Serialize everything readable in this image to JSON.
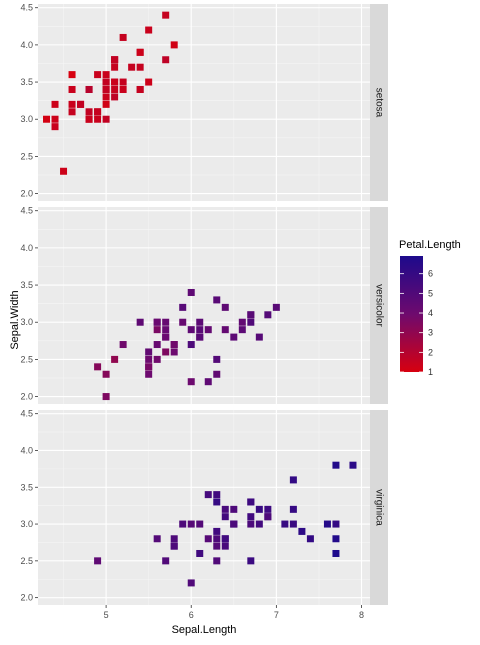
{
  "chart_data": {
    "type": "scatter",
    "xlabel": "Sepal.Length",
    "ylabel": "Sepal.Width",
    "xlim": [
      4.2,
      8.1
    ],
    "ylim": [
      1.9,
      4.55
    ],
    "x_ticks": [
      5,
      6,
      7,
      8
    ],
    "x_tick_labels": [
      "5",
      "6",
      "7",
      "8"
    ],
    "y_ticks": [
      2.0,
      2.5,
      3.0,
      3.5,
      4.0,
      4.5
    ],
    "y_tick_labels": [
      "2.0",
      "2.5",
      "3.0",
      "3.5",
      "4.0",
      "4.5"
    ],
    "grid": true,
    "facet_by": "Species",
    "legend": {
      "title": "Petal.Length",
      "placement": "right",
      "range": [
        1,
        6.9
      ],
      "ticks": [
        1,
        2,
        3,
        4,
        5,
        6
      ],
      "tick_labels": [
        "1",
        "2",
        "3",
        "4",
        "5",
        "6"
      ],
      "color_low": "#d7000f",
      "color_mid": "#6e0a6e",
      "color_high": "#1d0a8c"
    },
    "panels": [
      {
        "label": "setosa",
        "points": [
          [
            5.1,
            3.5,
            1.4
          ],
          [
            4.9,
            3.0,
            1.4
          ],
          [
            4.7,
            3.2,
            1.3
          ],
          [
            4.6,
            3.1,
            1.5
          ],
          [
            5.0,
            3.6,
            1.4
          ],
          [
            5.4,
            3.9,
            1.7
          ],
          [
            4.6,
            3.4,
            1.4
          ],
          [
            5.0,
            3.4,
            1.5
          ],
          [
            4.4,
            2.9,
            1.4
          ],
          [
            4.9,
            3.1,
            1.5
          ],
          [
            5.4,
            3.7,
            1.5
          ],
          [
            4.8,
            3.4,
            1.6
          ],
          [
            4.8,
            3.0,
            1.4
          ],
          [
            4.3,
            3.0,
            1.1
          ],
          [
            5.8,
            4.0,
            1.2
          ],
          [
            5.7,
            4.4,
            1.5
          ],
          [
            5.4,
            3.9,
            1.3
          ],
          [
            5.1,
            3.5,
            1.4
          ],
          [
            5.7,
            3.8,
            1.7
          ],
          [
            5.1,
            3.8,
            1.5
          ],
          [
            5.4,
            3.4,
            1.7
          ],
          [
            5.1,
            3.7,
            1.5
          ],
          [
            4.6,
            3.6,
            1.0
          ],
          [
            5.1,
            3.3,
            1.7
          ],
          [
            4.8,
            3.4,
            1.9
          ],
          [
            5.0,
            3.0,
            1.6
          ],
          [
            5.0,
            3.4,
            1.6
          ],
          [
            5.2,
            3.5,
            1.5
          ],
          [
            5.2,
            3.4,
            1.4
          ],
          [
            4.7,
            3.2,
            1.6
          ],
          [
            4.8,
            3.1,
            1.6
          ],
          [
            5.4,
            3.4,
            1.5
          ],
          [
            5.2,
            4.1,
            1.5
          ],
          [
            5.5,
            4.2,
            1.4
          ],
          [
            4.9,
            3.1,
            1.5
          ],
          [
            5.0,
            3.2,
            1.2
          ],
          [
            5.5,
            3.5,
            1.3
          ],
          [
            4.9,
            3.6,
            1.4
          ],
          [
            4.4,
            3.0,
            1.3
          ],
          [
            5.1,
            3.4,
            1.5
          ],
          [
            5.0,
            3.5,
            1.3
          ],
          [
            4.5,
            2.3,
            1.3
          ],
          [
            4.4,
            3.2,
            1.3
          ],
          [
            5.0,
            3.5,
            1.6
          ],
          [
            5.1,
            3.8,
            1.9
          ],
          [
            4.8,
            3.0,
            1.4
          ],
          [
            5.1,
            3.8,
            1.6
          ],
          [
            4.6,
            3.2,
            1.4
          ],
          [
            5.3,
            3.7,
            1.5
          ],
          [
            5.0,
            3.3,
            1.4
          ]
        ]
      },
      {
        "label": "versicolor",
        "points": [
          [
            7.0,
            3.2,
            4.7
          ],
          [
            6.4,
            3.2,
            4.5
          ],
          [
            6.9,
            3.1,
            4.9
          ],
          [
            5.5,
            2.3,
            4.0
          ],
          [
            6.5,
            2.8,
            4.6
          ],
          [
            5.7,
            2.8,
            4.5
          ],
          [
            6.3,
            3.3,
            4.7
          ],
          [
            4.9,
            2.4,
            3.3
          ],
          [
            6.6,
            2.9,
            4.6
          ],
          [
            5.2,
            2.7,
            3.9
          ],
          [
            5.0,
            2.0,
            3.5
          ],
          [
            5.9,
            3.0,
            4.2
          ],
          [
            6.0,
            2.2,
            4.0
          ],
          [
            6.1,
            2.9,
            4.7
          ],
          [
            5.6,
            2.9,
            3.6
          ],
          [
            6.7,
            3.1,
            4.4
          ],
          [
            5.6,
            3.0,
            4.5
          ],
          [
            5.8,
            2.7,
            4.1
          ],
          [
            6.2,
            2.2,
            4.5
          ],
          [
            5.6,
            2.5,
            3.9
          ],
          [
            5.9,
            3.2,
            4.8
          ],
          [
            6.1,
            2.8,
            4.0
          ],
          [
            6.3,
            2.5,
            4.9
          ],
          [
            6.1,
            2.8,
            4.7
          ],
          [
            6.4,
            2.9,
            4.3
          ],
          [
            6.6,
            3.0,
            4.4
          ],
          [
            6.8,
            2.8,
            4.8
          ],
          [
            6.7,
            3.0,
            5.0
          ],
          [
            6.0,
            2.9,
            4.5
          ],
          [
            5.7,
            2.6,
            3.5
          ],
          [
            5.5,
            2.4,
            3.8
          ],
          [
            5.5,
            2.4,
            3.7
          ],
          [
            5.8,
            2.7,
            3.9
          ],
          [
            6.0,
            2.7,
            5.1
          ],
          [
            5.4,
            3.0,
            4.5
          ],
          [
            6.0,
            3.4,
            4.5
          ],
          [
            6.7,
            3.1,
            4.7
          ],
          [
            6.3,
            2.3,
            4.4
          ],
          [
            5.6,
            3.0,
            4.1
          ],
          [
            5.5,
            2.5,
            4.0
          ],
          [
            5.5,
            2.6,
            4.4
          ],
          [
            6.1,
            3.0,
            4.6
          ],
          [
            5.8,
            2.6,
            4.0
          ],
          [
            5.0,
            2.3,
            3.3
          ],
          [
            5.6,
            2.7,
            4.2
          ],
          [
            5.7,
            3.0,
            4.2
          ],
          [
            5.7,
            2.9,
            4.2
          ],
          [
            6.2,
            2.9,
            4.3
          ],
          [
            5.1,
            2.5,
            3.0
          ],
          [
            5.7,
            2.8,
            4.1
          ]
        ]
      },
      {
        "label": "virginica",
        "points": [
          [
            6.3,
            3.3,
            6.0
          ],
          [
            5.8,
            2.7,
            5.1
          ],
          [
            7.1,
            3.0,
            5.9
          ],
          [
            6.3,
            2.9,
            5.6
          ],
          [
            6.5,
            3.0,
            5.8
          ],
          [
            7.6,
            3.0,
            6.6
          ],
          [
            4.9,
            2.5,
            4.5
          ],
          [
            7.3,
            2.9,
            6.3
          ],
          [
            6.7,
            2.5,
            5.8
          ],
          [
            7.2,
            3.6,
            6.1
          ],
          [
            6.5,
            3.2,
            5.1
          ],
          [
            6.4,
            2.7,
            5.3
          ],
          [
            6.8,
            3.0,
            5.5
          ],
          [
            5.7,
            2.5,
            5.0
          ],
          [
            5.8,
            2.8,
            5.1
          ],
          [
            6.4,
            3.2,
            5.3
          ],
          [
            6.5,
            3.0,
            5.5
          ],
          [
            7.7,
            3.8,
            6.7
          ],
          [
            7.7,
            2.6,
            6.9
          ],
          [
            6.0,
            2.2,
            5.0
          ],
          [
            6.9,
            3.2,
            5.7
          ],
          [
            5.6,
            2.8,
            4.9
          ],
          [
            7.7,
            2.8,
            6.7
          ],
          [
            6.3,
            2.7,
            4.9
          ],
          [
            6.7,
            3.3,
            5.7
          ],
          [
            7.2,
            3.2,
            6.0
          ],
          [
            6.2,
            2.8,
            4.8
          ],
          [
            6.1,
            3.0,
            4.9
          ],
          [
            6.4,
            2.8,
            5.6
          ],
          [
            7.2,
            3.0,
            5.8
          ],
          [
            7.4,
            2.8,
            6.1
          ],
          [
            7.9,
            3.8,
            6.4
          ],
          [
            6.4,
            2.8,
            5.6
          ],
          [
            6.3,
            2.8,
            5.1
          ],
          [
            6.1,
            2.6,
            5.6
          ],
          [
            7.7,
            3.0,
            6.1
          ],
          [
            6.3,
            3.4,
            5.6
          ],
          [
            6.4,
            3.1,
            5.5
          ],
          [
            6.0,
            3.0,
            4.8
          ],
          [
            6.9,
            3.1,
            5.4
          ],
          [
            6.7,
            3.1,
            5.6
          ],
          [
            6.9,
            3.1,
            5.1
          ],
          [
            5.8,
            2.7,
            5.1
          ],
          [
            6.8,
            3.2,
            5.9
          ],
          [
            6.7,
            3.3,
            5.7
          ],
          [
            6.7,
            3.0,
            5.2
          ],
          [
            6.3,
            2.5,
            5.0
          ],
          [
            6.5,
            3.0,
            5.2
          ],
          [
            6.2,
            3.4,
            5.4
          ],
          [
            5.9,
            3.0,
            5.1
          ]
        ]
      }
    ]
  }
}
